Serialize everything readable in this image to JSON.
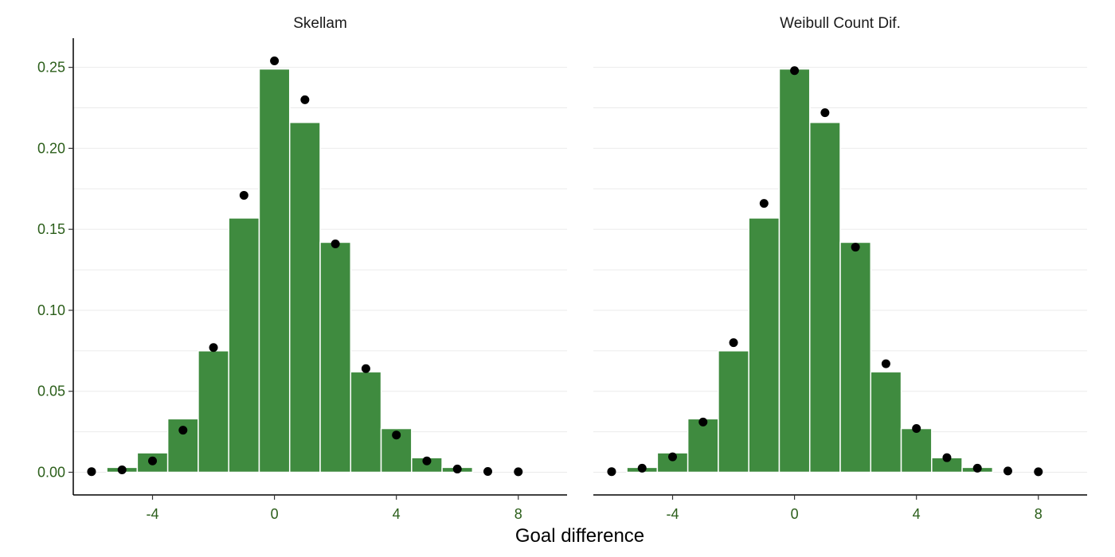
{
  "chart_data": {
    "type": "bar",
    "xlabel": "Goal difference",
    "ylabel": "",
    "xlim": [
      -6.6,
      9.6
    ],
    "ylim": [
      -0.014,
      0.268
    ],
    "x_ticks": [
      -4,
      0,
      4,
      8
    ],
    "x_tick_labels": [
      "-4",
      "0",
      "4",
      "8"
    ],
    "y_ticks": [
      0,
      0.05,
      0.1,
      0.15,
      0.2,
      0.25
    ],
    "y_tick_labels": [
      "0.00",
      "0.05",
      "0.10",
      "0.15",
      "0.20",
      "0.25"
    ],
    "grid": "horizontal",
    "colors": {
      "bar": "#3f8b3f",
      "point": "#000000",
      "grid": "#ebebeb"
    },
    "x": [
      -6,
      -5,
      -4,
      -3,
      -2,
      -1,
      0,
      1,
      2,
      3,
      4,
      5,
      6,
      7,
      8
    ],
    "observed": [
      0,
      0.003,
      0.012,
      0.033,
      0.075,
      0.157,
      0.249,
      0.216,
      0.142,
      0.062,
      0.027,
      0.009,
      0.003,
      0,
      0
    ],
    "panels": [
      {
        "title": "Skellam",
        "predicted": [
          0.0004,
          0.0015,
          0.007,
          0.026,
          0.077,
          0.171,
          0.254,
          0.23,
          0.141,
          0.064,
          0.023,
          0.007,
          0.002,
          0.0005,
          0.0003
        ]
      },
      {
        "title": "Weibull Count Dif.",
        "predicted": [
          0.0004,
          0.0025,
          0.0095,
          0.031,
          0.08,
          0.166,
          0.248,
          0.222,
          0.139,
          0.067,
          0.027,
          0.009,
          0.0025,
          0.0008,
          0.0003
        ]
      }
    ]
  }
}
